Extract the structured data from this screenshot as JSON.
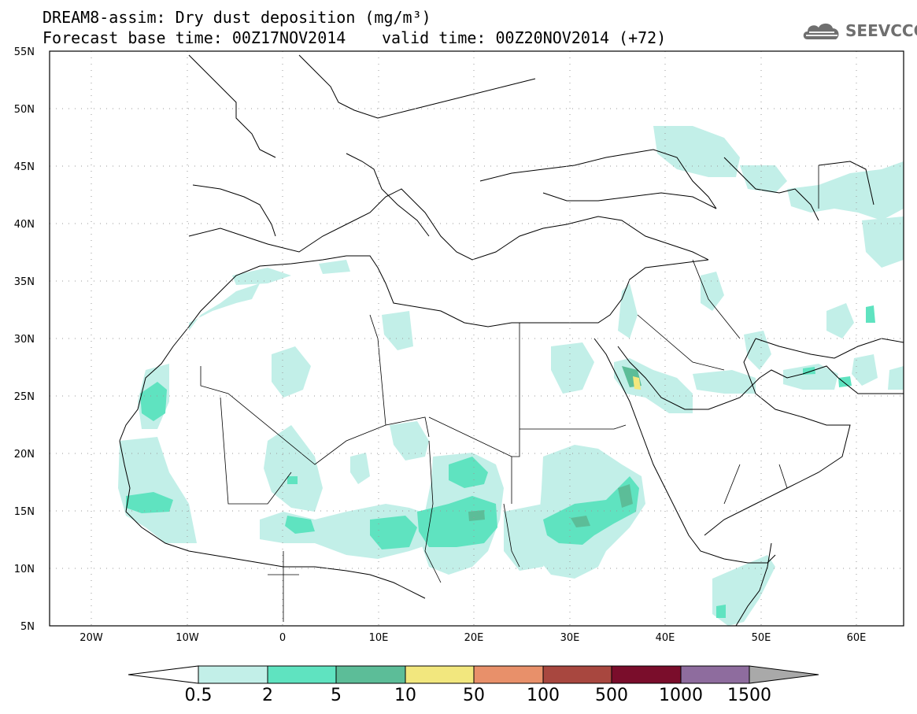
{
  "header": {
    "title_line1": "DREAM8-assim: Dry dust deposition (mg/m³)",
    "title_line2_left": "Forecast base time: 00Z17NOV2014",
    "title_line2_right": "valid time: 00Z20NOV2014 (+72)",
    "logo_text": "SEEVCCC",
    "logo_icon": "cloud-logo-icon"
  },
  "map": {
    "lon_range": [
      -25,
      65
    ],
    "lat_range": [
      5,
      55
    ],
    "lon_ticks": [
      "20W",
      "10W",
      "0",
      "10E",
      "20E",
      "30E",
      "40E",
      "50E",
      "60E"
    ],
    "lat_ticks": [
      "55N",
      "50N",
      "45N",
      "40N",
      "35N",
      "30N",
      "25N",
      "20N",
      "15N",
      "10N",
      "5N"
    ]
  },
  "legend": {
    "labels": [
      "0.5",
      "2",
      "5",
      "10",
      "50",
      "100",
      "500",
      "1000",
      "1500"
    ],
    "colors": [
      "#c2efe8",
      "#5fe3c0",
      "#5cbd98",
      "#f2e77e",
      "#e8906a",
      "#a8473f",
      "#7a0d2b",
      "#8e6c9e",
      "#a9a9a9"
    ]
  }
}
